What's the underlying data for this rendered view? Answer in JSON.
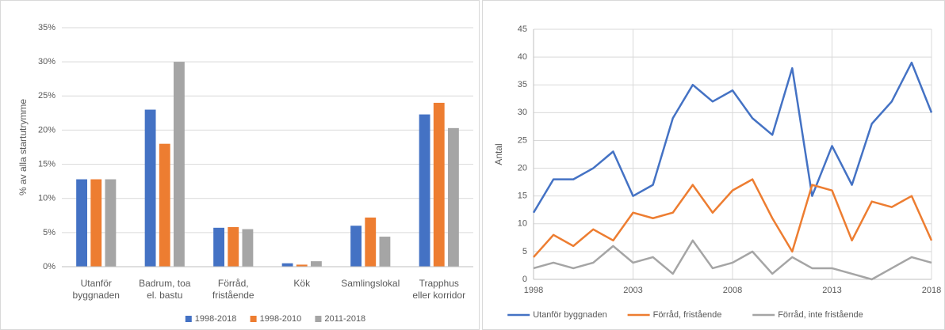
{
  "chart_data": [
    {
      "type": "bar",
      "ylabel": "% av alla startutrymme",
      "categories": [
        "Utanför\nbyggnaden",
        "Badrum, toa\nel. bastu",
        "Förråd,\nfristående",
        "Kök",
        "Samlingslokal",
        "Trapphus\neller korridor"
      ],
      "series": [
        {
          "name": "1998-2018",
          "color": "#4472c4",
          "values": [
            12.8,
            23,
            5.7,
            0.5,
            6,
            22.3
          ]
        },
        {
          "name": "1998-2010",
          "color": "#ed7d31",
          "values": [
            12.8,
            18,
            5.8,
            0.3,
            7.2,
            24
          ]
        },
        {
          "name": "2011-2018",
          "color": "#a5a5a5",
          "values": [
            12.8,
            30,
            5.5,
            0.8,
            4.4,
            20.3
          ]
        }
      ],
      "ylim": [
        0,
        35
      ],
      "yticks": [
        {
          "value": 0,
          "label": "0%"
        },
        {
          "value": 5,
          "label": "5%"
        },
        {
          "value": 10,
          "label": "10%"
        },
        {
          "value": 15,
          "label": "15%"
        },
        {
          "value": 20,
          "label": "20%"
        },
        {
          "value": 25,
          "label": "25%"
        },
        {
          "value": 30,
          "label": "30%"
        },
        {
          "value": 35,
          "label": "35%"
        }
      ],
      "grid": true,
      "legend": "bottom"
    },
    {
      "type": "line",
      "ylabel": "Antal",
      "x": [
        1998,
        1999,
        2000,
        2001,
        2002,
        2003,
        2004,
        2005,
        2006,
        2007,
        2008,
        2009,
        2010,
        2011,
        2012,
        2013,
        2014,
        2015,
        2016,
        2017,
        2018
      ],
      "series": [
        {
          "name": "Utanför byggnaden",
          "color": "#4472c4",
          "values": [
            12,
            18,
            18,
            20,
            23,
            15,
            17,
            29,
            35,
            32,
            34,
            29,
            26,
            38,
            15,
            24,
            17,
            28,
            32,
            39,
            30
          ]
        },
        {
          "name": "Förråd, fristående",
          "color": "#ed7d31",
          "values": [
            4,
            8,
            6,
            9,
            7,
            12,
            11,
            12,
            17,
            12,
            16,
            18,
            11,
            5,
            17,
            16,
            7,
            14,
            13,
            15,
            7
          ]
        },
        {
          "name": "Förråd, inte fristående",
          "color": "#a5a5a5",
          "values": [
            2,
            3,
            2,
            3,
            6,
            3,
            4,
            1,
            7,
            2,
            3,
            5,
            1,
            4,
            2,
            2,
            1,
            0,
            2,
            4,
            3
          ]
        }
      ],
      "xlim": [
        1998,
        2018
      ],
      "xticks": [
        1998,
        2003,
        2008,
        2013,
        2018
      ],
      "ylim": [
        0,
        45
      ],
      "yticks": [
        0,
        5,
        10,
        15,
        20,
        25,
        30,
        35,
        40,
        45
      ],
      "grid": true,
      "legend": "bottom"
    }
  ]
}
